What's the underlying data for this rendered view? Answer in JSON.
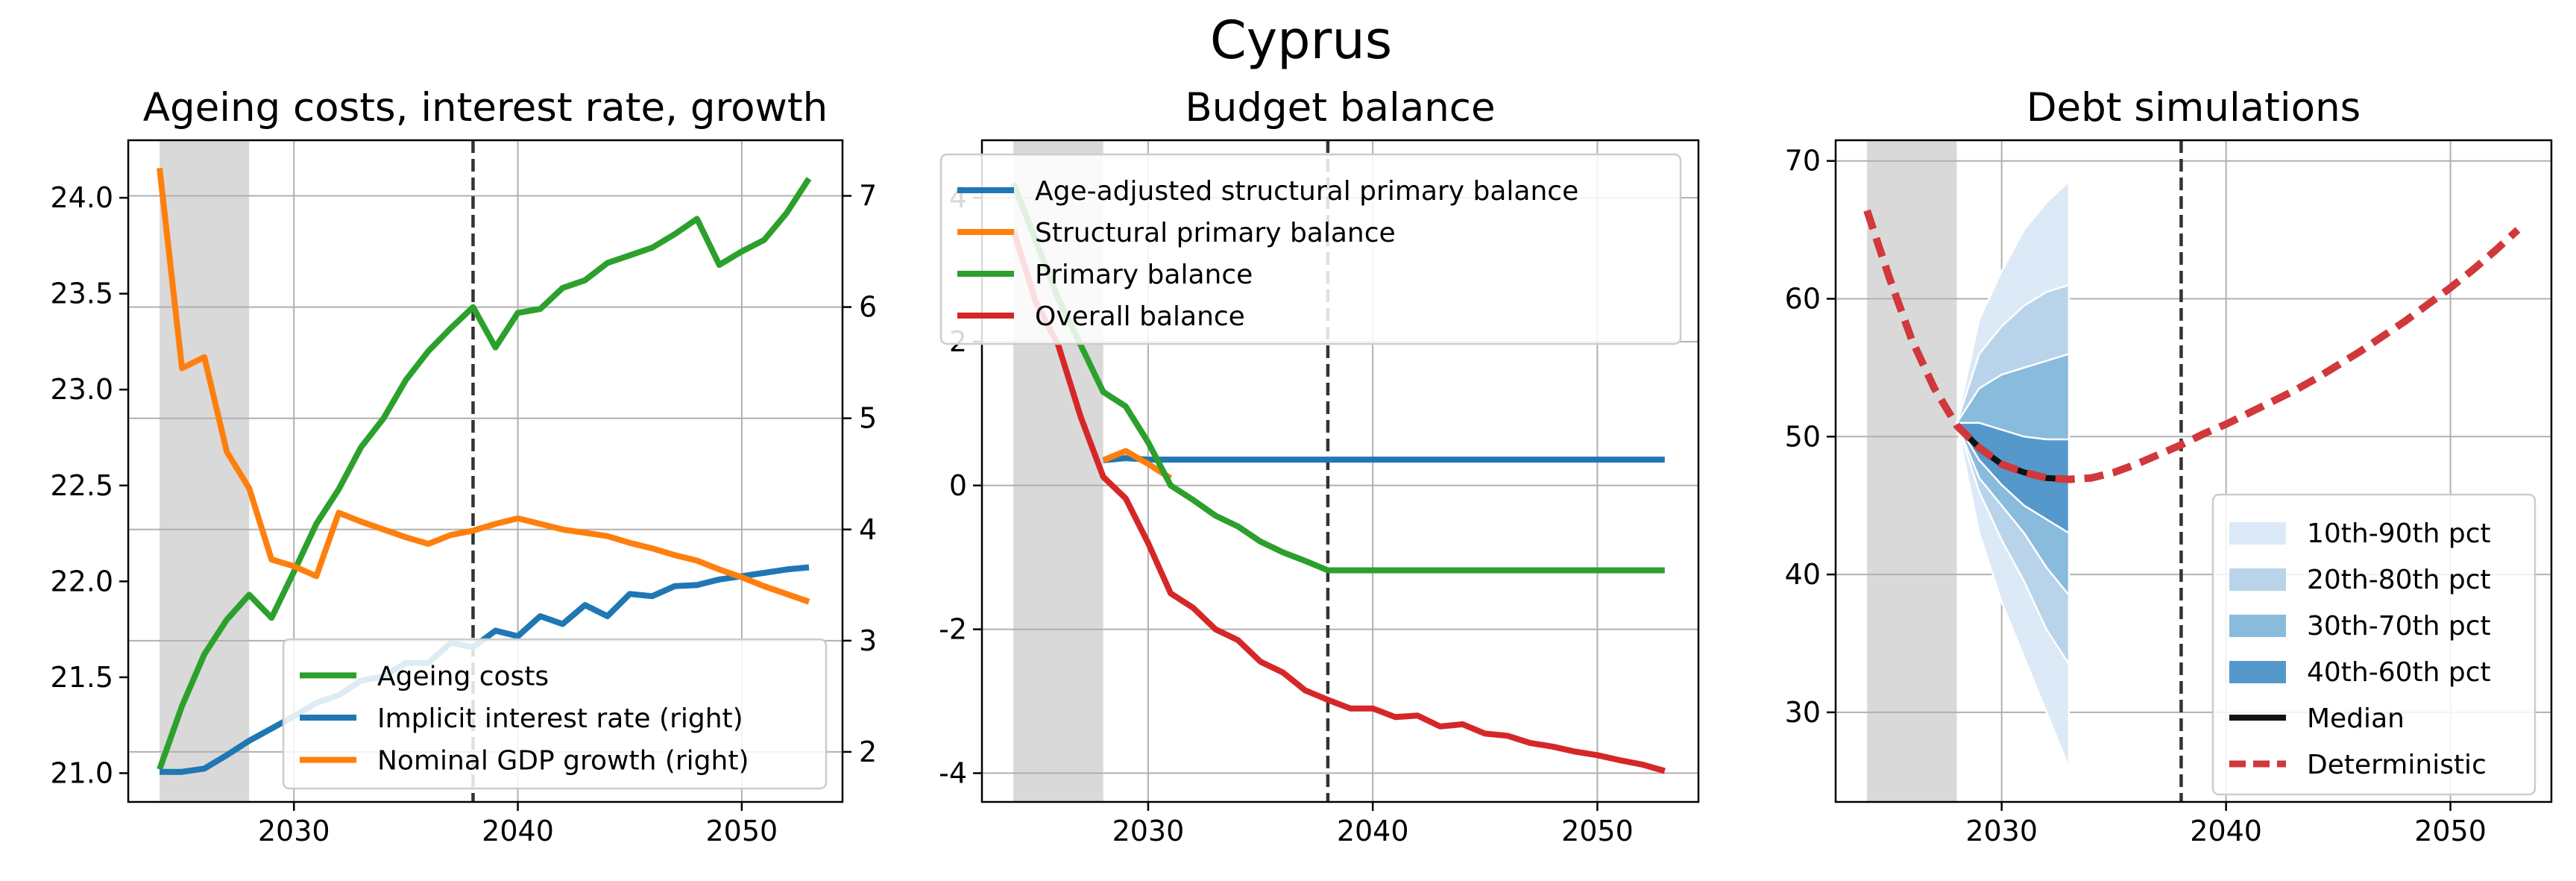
{
  "figure": {
    "title": "Cyprus"
  },
  "chart_data": [
    {
      "type": "line",
      "title": "Ageing costs, interest rate, growth",
      "xlim": [
        2022.6,
        2054.5
      ],
      "ylim": [
        20.85,
        24.3
      ],
      "y2lim": [
        1.55,
        7.5
      ],
      "shaded_x": [
        2024,
        2028
      ],
      "vline_x": 2038,
      "grid": true,
      "legend_position": "lower-right",
      "xticks": [
        {
          "v": 2030,
          "label": "2030"
        },
        {
          "v": 2040,
          "label": "2040"
        },
        {
          "v": 2050,
          "label": "2050"
        }
      ],
      "yticks": [
        {
          "v": 21.0,
          "label": "21.0"
        },
        {
          "v": 21.5,
          "label": "21.5"
        },
        {
          "v": 22.0,
          "label": "22.0"
        },
        {
          "v": 22.5,
          "label": "22.5"
        },
        {
          "v": 23.0,
          "label": "23.0"
        },
        {
          "v": 23.5,
          "label": "23.5"
        },
        {
          "v": 24.0,
          "label": "24.0"
        }
      ],
      "y2ticks": [
        {
          "v": 2,
          "label": "2"
        },
        {
          "v": 3,
          "label": "3"
        },
        {
          "v": 4,
          "label": "4"
        },
        {
          "v": 5,
          "label": "5"
        },
        {
          "v": 6,
          "label": "6"
        },
        {
          "v": 7,
          "label": "7"
        }
      ],
      "x": [
        2024,
        2025,
        2026,
        2027,
        2028,
        2029,
        2030,
        2031,
        2032,
        2033,
        2034,
        2035,
        2036,
        2037,
        2038,
        2039,
        2040,
        2041,
        2042,
        2043,
        2044,
        2045,
        2046,
        2047,
        2048,
        2049,
        2050,
        2051,
        2052,
        2053
      ],
      "series": [
        {
          "name": "Ageing costs",
          "axis": "left",
          "color": "#2ca02c",
          "style": "solid",
          "values": [
            21.02,
            21.35,
            21.62,
            21.8,
            21.93,
            21.81,
            22.05,
            22.3,
            22.48,
            22.7,
            22.85,
            23.05,
            23.2,
            23.32,
            23.43,
            23.22,
            23.4,
            23.42,
            23.53,
            23.57,
            23.66,
            23.7,
            23.74,
            23.81,
            23.89,
            23.65,
            23.72,
            23.78,
            23.92,
            24.1
          ]
        },
        {
          "name": "Implicit interest rate (right)",
          "axis": "right",
          "color": "#1f77b4",
          "style": "solid",
          "values": [
            1.82,
            1.82,
            1.85,
            1.97,
            2.1,
            2.21,
            2.32,
            2.44,
            2.51,
            2.64,
            2.68,
            2.8,
            2.8,
            2.98,
            2.94,
            3.09,
            3.04,
            3.22,
            3.15,
            3.32,
            3.22,
            3.42,
            3.4,
            3.49,
            3.5,
            3.55,
            3.58,
            3.61,
            3.64,
            3.66
          ]
        },
        {
          "name": "Nominal GDP growth (right)",
          "axis": "right",
          "color": "#ff7f0e",
          "style": "solid",
          "values": [
            7.25,
            5.45,
            5.55,
            4.7,
            4.37,
            3.73,
            3.67,
            3.58,
            4.15,
            4.07,
            4.0,
            3.93,
            3.87,
            3.95,
            3.99,
            4.05,
            4.1,
            4.05,
            4.0,
            3.97,
            3.94,
            3.88,
            3.83,
            3.77,
            3.72,
            3.64,
            3.57,
            3.49,
            3.42,
            3.35
          ]
        }
      ]
    },
    {
      "type": "line",
      "title": "Budget balance",
      "xlim": [
        2022.6,
        2054.5
      ],
      "ylim": [
        -4.4,
        4.8
      ],
      "shaded_x": [
        2024,
        2028
      ],
      "vline_x": 2038,
      "grid": true,
      "legend_position": "top-right",
      "xticks": [
        {
          "v": 2030,
          "label": "2030"
        },
        {
          "v": 2040,
          "label": "2040"
        },
        {
          "v": 2050,
          "label": "2050"
        }
      ],
      "yticks": [
        {
          "v": -4,
          "label": "-4"
        },
        {
          "v": -2,
          "label": "-2"
        },
        {
          "v": 0,
          "label": "0"
        },
        {
          "v": 2,
          "label": "2"
        },
        {
          "v": 4,
          "label": "4"
        }
      ],
      "series": [
        {
          "name": "Age-adjusted structural primary balance",
          "color": "#1f77b4",
          "style": "solid",
          "x": [
            2028,
            2029,
            2030,
            2031,
            2035,
            2040,
            2045,
            2050,
            2053
          ],
          "values": [
            0.35,
            0.38,
            0.36,
            0.36,
            0.36,
            0.36,
            0.36,
            0.36,
            0.36
          ]
        },
        {
          "name": "Structural primary balance",
          "color": "#ff7f0e",
          "style": "solid",
          "x": [
            2028,
            2029,
            2030,
            2031
          ],
          "values": [
            0.35,
            0.48,
            0.3,
            0.1
          ]
        },
        {
          "name": "Primary balance",
          "color": "#2ca02c",
          "style": "solid",
          "x": [
            2024,
            2025,
            2026,
            2027,
            2028,
            2029,
            2030,
            2031,
            2032,
            2033,
            2034,
            2035,
            2036,
            2037,
            2038,
            2040,
            2045,
            2050,
            2053
          ],
          "values": [
            4.2,
            3.4,
            2.6,
            1.95,
            1.3,
            1.1,
            0.6,
            0.0,
            -0.2,
            -0.42,
            -0.57,
            -0.78,
            -0.93,
            -1.05,
            -1.18,
            -1.18,
            -1.18,
            -1.18,
            -1.18
          ]
        },
        {
          "name": "Overall balance",
          "color": "#d62728",
          "style": "solid",
          "x": [
            2024,
            2025,
            2026,
            2027,
            2028,
            2029,
            2030,
            2031,
            2032,
            2033,
            2034,
            2035,
            2036,
            2037,
            2038,
            2039,
            2040,
            2041,
            2042,
            2043,
            2044,
            2045,
            2046,
            2047,
            2048,
            2049,
            2050,
            2051,
            2052,
            2053
          ],
          "values": [
            3.55,
            2.55,
            1.95,
            0.95,
            0.12,
            -0.18,
            -0.8,
            -1.5,
            -1.7,
            -2.0,
            -2.15,
            -2.45,
            -2.6,
            -2.85,
            -2.98,
            -3.1,
            -3.1,
            -3.22,
            -3.2,
            -3.35,
            -3.32,
            -3.45,
            -3.48,
            -3.58,
            -3.63,
            -3.7,
            -3.75,
            -3.82,
            -3.88,
            -3.97
          ]
        }
      ]
    },
    {
      "type": "area",
      "title": "Debt simulations",
      "xlim": [
        2022.6,
        2054.5
      ],
      "ylim": [
        23.5,
        71.5
      ],
      "shaded_x": [
        2024,
        2028
      ],
      "vline_x": 2038,
      "grid": true,
      "legend_position": "lower-right",
      "xticks": [
        {
          "v": 2030,
          "label": "2030"
        },
        {
          "v": 2040,
          "label": "2040"
        },
        {
          "v": 2050,
          "label": "2050"
        }
      ],
      "yticks": [
        {
          "v": 30,
          "label": "30"
        },
        {
          "v": 40,
          "label": "40"
        },
        {
          "v": 50,
          "label": "50"
        },
        {
          "v": 60,
          "label": "60"
        },
        {
          "v": 70,
          "label": "70"
        }
      ],
      "fan_x": [
        2028,
        2029,
        2030,
        2031,
        2032,
        2033
      ],
      "bands": [
        {
          "name": "10th-90th pct",
          "color": "#dce9f6",
          "lower": [
            51.0,
            43.0,
            38.0,
            34.0,
            30.0,
            26.0
          ],
          "upper": [
            51.0,
            58.5,
            62.0,
            65.0,
            67.0,
            68.5
          ]
        },
        {
          "name": "20th-80th pct",
          "color": "#b9d4ea",
          "lower": [
            51.0,
            46.0,
            42.5,
            39.5,
            36.0,
            33.5
          ],
          "upper": [
            51.0,
            56.0,
            58.0,
            59.5,
            60.5,
            61.0
          ]
        },
        {
          "name": "30th-70th pct",
          "color": "#89bbdc",
          "lower": [
            51.0,
            47.0,
            45.0,
            43.0,
            40.5,
            38.5
          ],
          "upper": [
            51.0,
            53.5,
            54.5,
            55.0,
            55.5,
            56.0
          ]
        },
        {
          "name": "40th-60th pct",
          "color": "#5598cb",
          "lower": [
            51.0,
            48.3,
            46.5,
            45.0,
            44.0,
            43.0
          ],
          "upper": [
            51.0,
            51.0,
            50.5,
            50.0,
            49.8,
            49.8
          ]
        }
      ],
      "series": [
        {
          "name": "Median",
          "color": "#111111",
          "style": "solid",
          "x": [
            2028,
            2029,
            2030,
            2031,
            2032,
            2033
          ],
          "values": [
            50.8,
            49.2,
            48.0,
            47.4,
            47.0,
            46.9
          ]
        },
        {
          "name": "Deterministic",
          "color": "#d1383b",
          "style": "dashed",
          "x": [
            2024,
            2025,
            2026,
            2027,
            2028,
            2029,
            2030,
            2031,
            2032,
            2033,
            2034,
            2035,
            2036,
            2037,
            2038,
            2039,
            2040,
            2041,
            2042,
            2043,
            2044,
            2045,
            2046,
            2047,
            2048,
            2049,
            2050,
            2051,
            2052,
            2053
          ],
          "values": [
            66.4,
            61.5,
            57.0,
            53.5,
            50.8,
            49.2,
            48.0,
            47.4,
            47.0,
            46.9,
            47.0,
            47.4,
            48.0,
            48.7,
            49.4,
            50.2,
            50.9,
            51.7,
            52.5,
            53.3,
            54.2,
            55.2,
            56.2,
            57.3,
            58.4,
            59.6,
            60.8,
            62.1,
            63.5,
            65.0
          ]
        }
      ]
    }
  ]
}
